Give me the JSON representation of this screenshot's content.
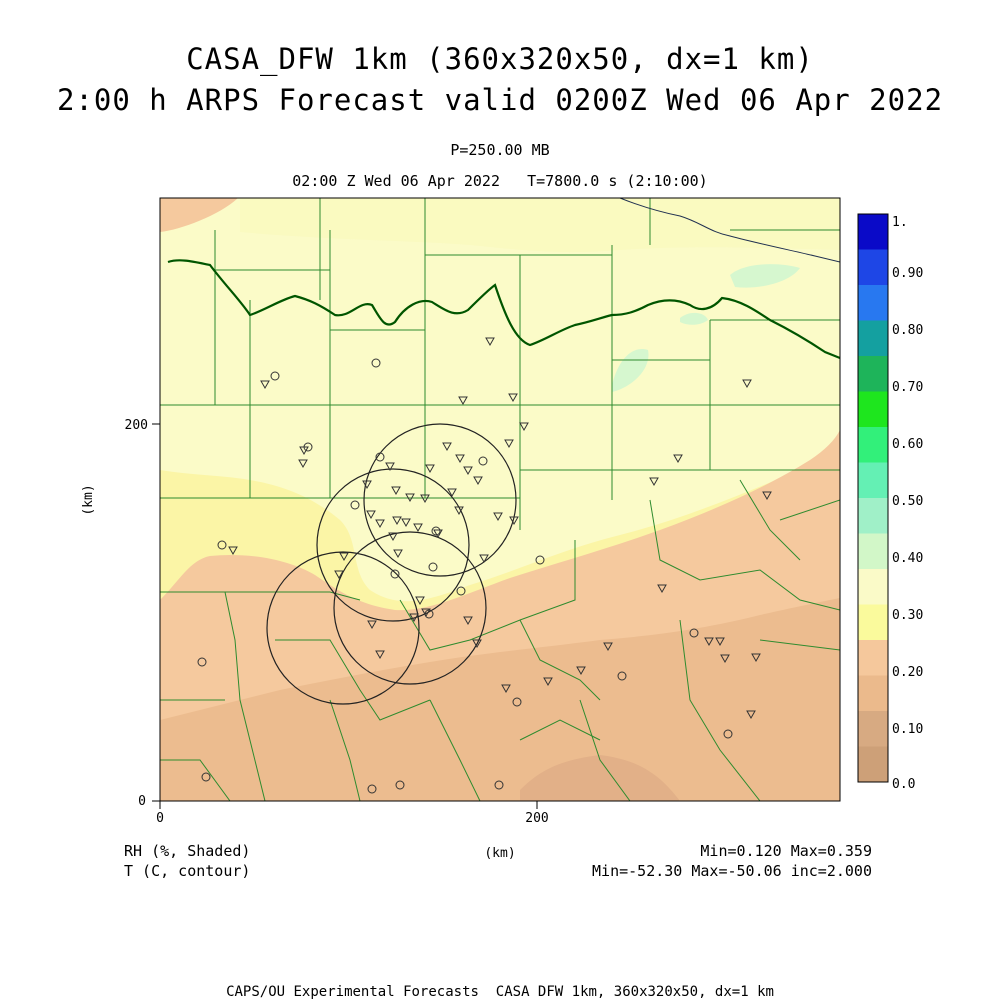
{
  "title": {
    "line1": "CASA_DFW 1km (360x320x50, dx=1 km)",
    "line2": "2:00 h ARPS Forecast valid 0200Z Wed 06 Apr 2022"
  },
  "subtitle": {
    "pressure": "P=250.00 MB",
    "time": "02:00 Z Wed 06 Apr 2022   T=7800.0 s (2:10:00)"
  },
  "axes": {
    "x_ticks": [
      "0",
      "200"
    ],
    "y_ticks": [
      "0",
      "200"
    ],
    "x_label": "(km)",
    "y_label": "(km)",
    "x_range": [
      0,
      360
    ],
    "y_range": [
      0,
      320
    ]
  },
  "colorbar": {
    "labels": [
      "1.",
      "0.90",
      "0.80",
      "0.70",
      "0.60",
      "0.50",
      "0.40",
      "0.30",
      "0.20",
      "0.10",
      "0.0"
    ],
    "colors": [
      "#0a0ac8",
      "#1e46e6",
      "#2878f0",
      "#14a0a0",
      "#1eb45a",
      "#1ee61e",
      "#32f07a",
      "#64f0b4",
      "#a0f0c8",
      "#d2f7c8",
      "#fafac8",
      "#fafa9c",
      "#f5c89c",
      "#ebba8c",
      "#d7aa82",
      "#cda078"
    ]
  },
  "legend": {
    "rh_label": "RH (%, Shaded)",
    "t_label": "T (C, contour)",
    "rh_stats": "Min=0.120 Max=0.359",
    "t_stats": "Min=-52.30 Max=-50.06 inc=2.000"
  },
  "footer": "CAPS/OU Experimental Forecasts  CASA DFW 1km, 360x320x50, dx=1 km",
  "map_colors": {
    "county_lines": "#2e8b2e",
    "state_border": "#005500",
    "river": "#203050",
    "station_marks": "#333333"
  }
}
